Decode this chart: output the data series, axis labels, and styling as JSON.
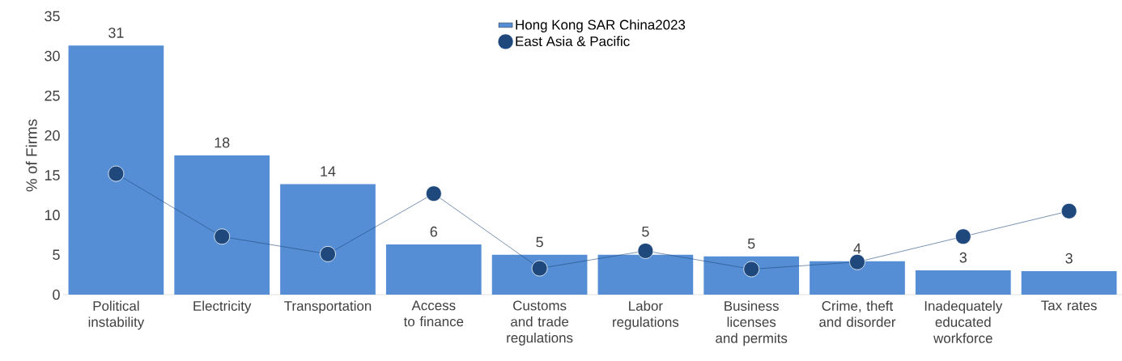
{
  "chart_data": {
    "type": "bar",
    "ylabel": "% of Firms",
    "categories": [
      "Political instability",
      "Electricity",
      "Transportation",
      "Access to finance",
      "Customs and trade regulations",
      "Labor regulations",
      "Business licenses and permits",
      "Crime, theft and disorder",
      "Inadequately educated workforce",
      "Tax rates"
    ],
    "series": [
      {
        "name": "Hong Kong SAR China2023",
        "color": "#558ed5",
        "values": [
          31.3,
          17.5,
          13.9,
          6.3,
          5.0,
          5.0,
          4.8,
          4.2,
          3.05,
          2.95
        ],
        "value_labels": [
          "31",
          "18",
          "14",
          "6",
          "5",
          "5",
          "5",
          "4",
          "3",
          "3"
        ]
      },
      {
        "name": "East Asia & Pacific",
        "type": "line",
        "color": "#1f497d",
        "values": [
          15.2,
          7.3,
          5.1,
          12.7,
          3.3,
          5.5,
          3.2,
          4.1,
          7.3,
          10.5
        ]
      }
    ],
    "ylim": [
      0,
      35
    ],
    "yticks": [
      0,
      5,
      10,
      15,
      20,
      25,
      30,
      35
    ],
    "legend": "top",
    "marker": "circle",
    "grid": false
  }
}
